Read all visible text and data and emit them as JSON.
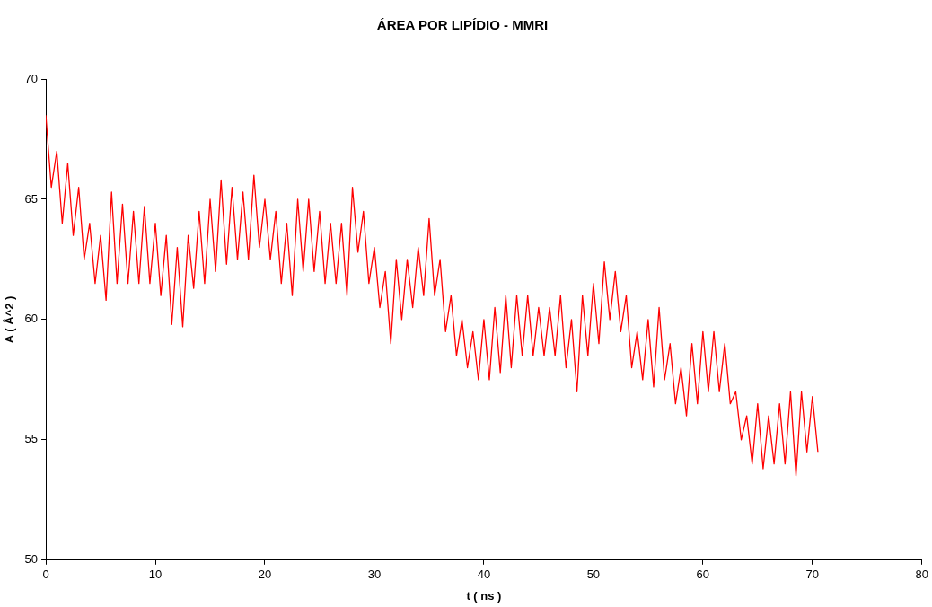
{
  "chart_data": {
    "type": "line",
    "title": "ÁREA POR LIPÍDIO - MMRI",
    "xlabel": "t ( ns )",
    "ylabel": "A ( Å^2 )",
    "color": "#ff0000",
    "marker": "none",
    "line_style": "solid",
    "legend": false,
    "xlim": [
      0,
      80
    ],
    "ylim": [
      50,
      70
    ],
    "xticks": [
      0,
      10,
      20,
      30,
      40,
      50,
      60,
      70,
      80
    ],
    "yticks": [
      50,
      55,
      60,
      65,
      70
    ],
    "x": [
      0,
      0.5,
      1,
      1.5,
      2,
      2.5,
      3,
      3.5,
      4,
      4.5,
      5,
      5.5,
      6,
      6.5,
      7,
      7.5,
      8,
      8.5,
      9,
      9.5,
      10,
      10.5,
      11,
      11.5,
      12,
      12.5,
      13,
      13.5,
      14,
      14.5,
      15,
      15.5,
      16,
      16.5,
      17,
      17.5,
      18,
      18.5,
      19,
      19.5,
      20,
      20.5,
      21,
      21.5,
      22,
      22.5,
      23,
      23.5,
      24,
      24.5,
      25,
      25.5,
      26,
      26.5,
      27,
      27.5,
      28,
      28.5,
      29,
      29.5,
      30,
      30.5,
      31,
      31.5,
      32,
      32.5,
      33,
      33.5,
      34,
      34.5,
      35,
      35.5,
      36,
      36.5,
      37,
      37.5,
      38,
      38.5,
      39,
      39.5,
      40,
      40.5,
      41,
      41.5,
      42,
      42.5,
      43,
      43.5,
      44,
      44.5,
      45,
      45.5,
      46,
      46.5,
      47,
      47.5,
      48,
      48.5,
      49,
      49.5,
      50,
      50.5,
      51,
      51.5,
      52,
      52.5,
      53,
      53.5,
      54,
      54.5,
      55,
      55.5,
      56,
      56.5,
      57,
      57.5,
      58,
      58.5,
      59,
      59.5,
      60,
      60.5,
      61,
      61.5,
      62,
      62.5,
      63,
      63.5,
      64,
      64.5,
      65,
      65.5,
      66,
      66.5,
      67,
      67.5,
      68,
      68.5,
      69,
      69.5,
      70,
      70.5
    ],
    "values": [
      68.5,
      65.5,
      67,
      64,
      66.5,
      63.5,
      65.5,
      62.5,
      64,
      61.5,
      63.5,
      60.8,
      65.3,
      61.5,
      64.8,
      61.5,
      64.5,
      61.5,
      64.7,
      61.5,
      64,
      61,
      63.5,
      59.8,
      63,
      59.7,
      63.5,
      61.3,
      64.5,
      61.5,
      65,
      62,
      65.8,
      62.3,
      65.5,
      62.5,
      65.3,
      62.5,
      66,
      63,
      65,
      62.5,
      64.5,
      61.5,
      64,
      61,
      65,
      62,
      65,
      62,
      64.5,
      61.5,
      64,
      61.5,
      64,
      61,
      65.5,
      62.8,
      64.5,
      61.5,
      63,
      60.5,
      62,
      59,
      62.5,
      60,
      62.5,
      60.5,
      63,
      61,
      64.2,
      61,
      62.5,
      59.5,
      61,
      58.5,
      60,
      58,
      59.5,
      57.5,
      60,
      57.5,
      60.5,
      57.8,
      61,
      58,
      61,
      58.5,
      61,
      58.5,
      60.5,
      58.5,
      60.5,
      58.5,
      61,
      58,
      60,
      57,
      61,
      58.5,
      61.5,
      59,
      62.4,
      60,
      62,
      59.5,
      61,
      58,
      59.5,
      57.5,
      60,
      57.2,
      60.5,
      57.5,
      59,
      56.5,
      58,
      56,
      59,
      56.5,
      59.5,
      57,
      59.5,
      57,
      59,
      56.5,
      57,
      55,
      56,
      54,
      56.5,
      53.8,
      56,
      54,
      56.5,
      54,
      57,
      53.5,
      57,
      54.5,
      56.8,
      54.5
    ]
  }
}
